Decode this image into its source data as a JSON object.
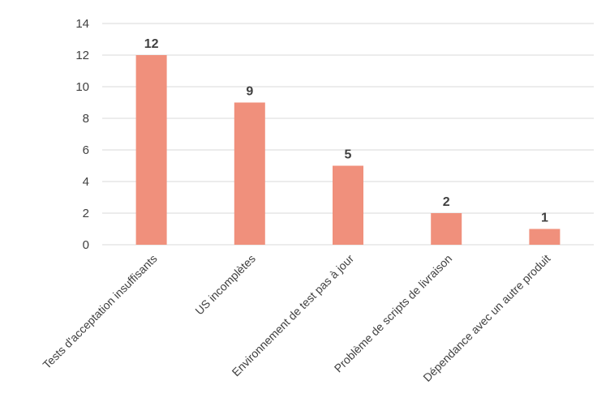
{
  "chart_data": {
    "type": "bar",
    "title": "",
    "xlabel": "",
    "ylabel": "",
    "categories": [
      "Tests d'acceptation insuffisants",
      "US incomplètes",
      "Environnement de test pas à jour",
      "Problème de scripts de livraison",
      "Dépendance avec un autre produit"
    ],
    "values": [
      12,
      9,
      5,
      2,
      1
    ],
    "ylim": [
      0,
      14
    ],
    "yticks": [
      "0",
      "2",
      "4",
      "6",
      "8",
      "10",
      "12",
      "14"
    ],
    "grid": true,
    "legend": "none",
    "bar_color": "#F0907C",
    "grid_color": "#D9D9D9",
    "text_color": "#404040"
  }
}
